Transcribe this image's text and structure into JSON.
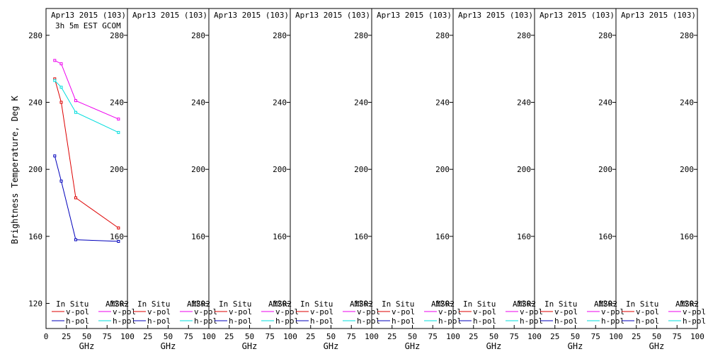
{
  "chart_data": {
    "type": "line",
    "ylabel": "Brightness Temperature, Deg K",
    "xlabel": "GHz",
    "xlim": [
      0,
      100
    ],
    "ylim": [
      105,
      296
    ],
    "yticks": [
      120,
      160,
      200,
      240,
      280
    ],
    "xticks_first": [
      "0",
      "25",
      "50",
      "75",
      "100"
    ],
    "xticks_rest": [
      "25",
      "50",
      "75",
      "100"
    ],
    "grid": false,
    "legend": {
      "left_header": "In Situ",
      "right_header": "AMSR2",
      "vpol": "v-pol",
      "hpol": "h-pol"
    },
    "colors": {
      "insitu_v": "#dd0000",
      "insitu_h": "#0000bb",
      "amsr2_v": "#ee00ee",
      "amsr2_h": "#00dddd"
    },
    "panels": [
      {
        "title": "Apr13 2015 (103)",
        "subtitle": "3h 5m EST GCOM",
        "series": [
          {
            "name": "In Situ v-pol",
            "color_key": "insitu_v",
            "x": [
              10.7,
              18.7,
              36.5,
              89.0
            ],
            "y": [
              254,
              240,
              183,
              165
            ]
          },
          {
            "name": "In Situ h-pol",
            "color_key": "insitu_h",
            "x": [
              10.7,
              18.7,
              36.5,
              89.0
            ],
            "y": [
              208,
              193,
              158,
              157
            ]
          },
          {
            "name": "AMSR2 v-pol",
            "color_key": "amsr2_v",
            "x": [
              10.7,
              18.7,
              36.5,
              89.0
            ],
            "y": [
              265,
              263,
              241,
              230
            ]
          },
          {
            "name": "AMSR2 h-pol",
            "color_key": "amsr2_h",
            "x": [
              10.7,
              18.7,
              36.5,
              89.0
            ],
            "y": [
              253,
              249,
              234,
              222
            ]
          }
        ]
      },
      {
        "title": "Apr13 2015 (103)",
        "subtitle": "",
        "series": []
      },
      {
        "title": "Apr13 2015 (103)",
        "subtitle": "",
        "series": []
      },
      {
        "title": "Apr13 2015 (103)",
        "subtitle": "",
        "series": []
      },
      {
        "title": "Apr13 2015 (103)",
        "subtitle": "",
        "series": []
      },
      {
        "title": "Apr13 2015 (103)",
        "subtitle": "",
        "series": []
      },
      {
        "title": "Apr13 2015 (103)",
        "subtitle": "",
        "series": []
      },
      {
        "title": "Apr13 2015 (103)",
        "subtitle": "",
        "series": []
      }
    ]
  }
}
